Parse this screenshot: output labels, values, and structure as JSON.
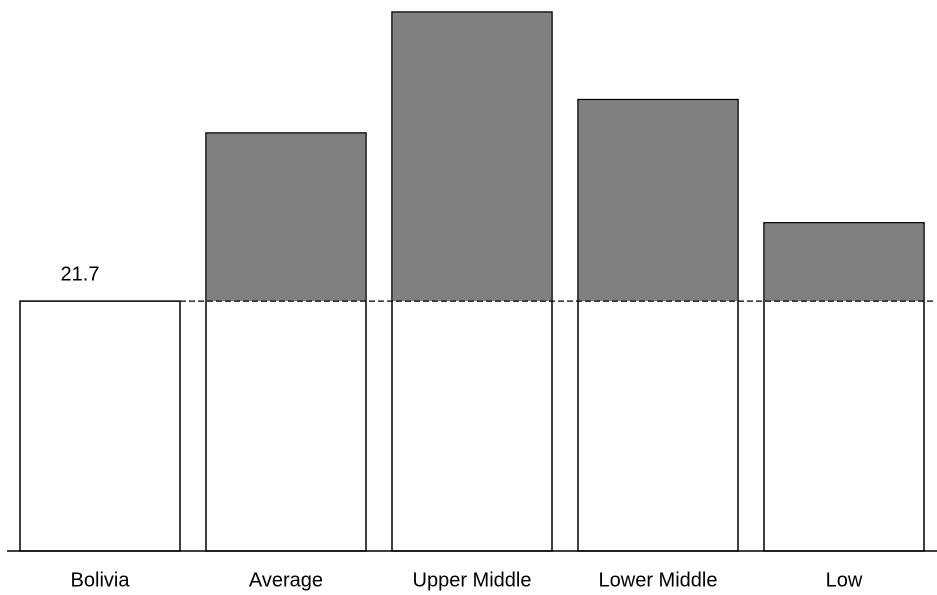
{
  "chart_data": {
    "type": "bar",
    "categories": [
      "Bolivia",
      "Average",
      "Upper Middle",
      "Lower Middle",
      "Low"
    ],
    "values": [
      21.7,
      36.3,
      46.8,
      39.2,
      28.5
    ],
    "color": "#808080",
    "ylim": [
      0,
      47.5
    ]
  }
}
